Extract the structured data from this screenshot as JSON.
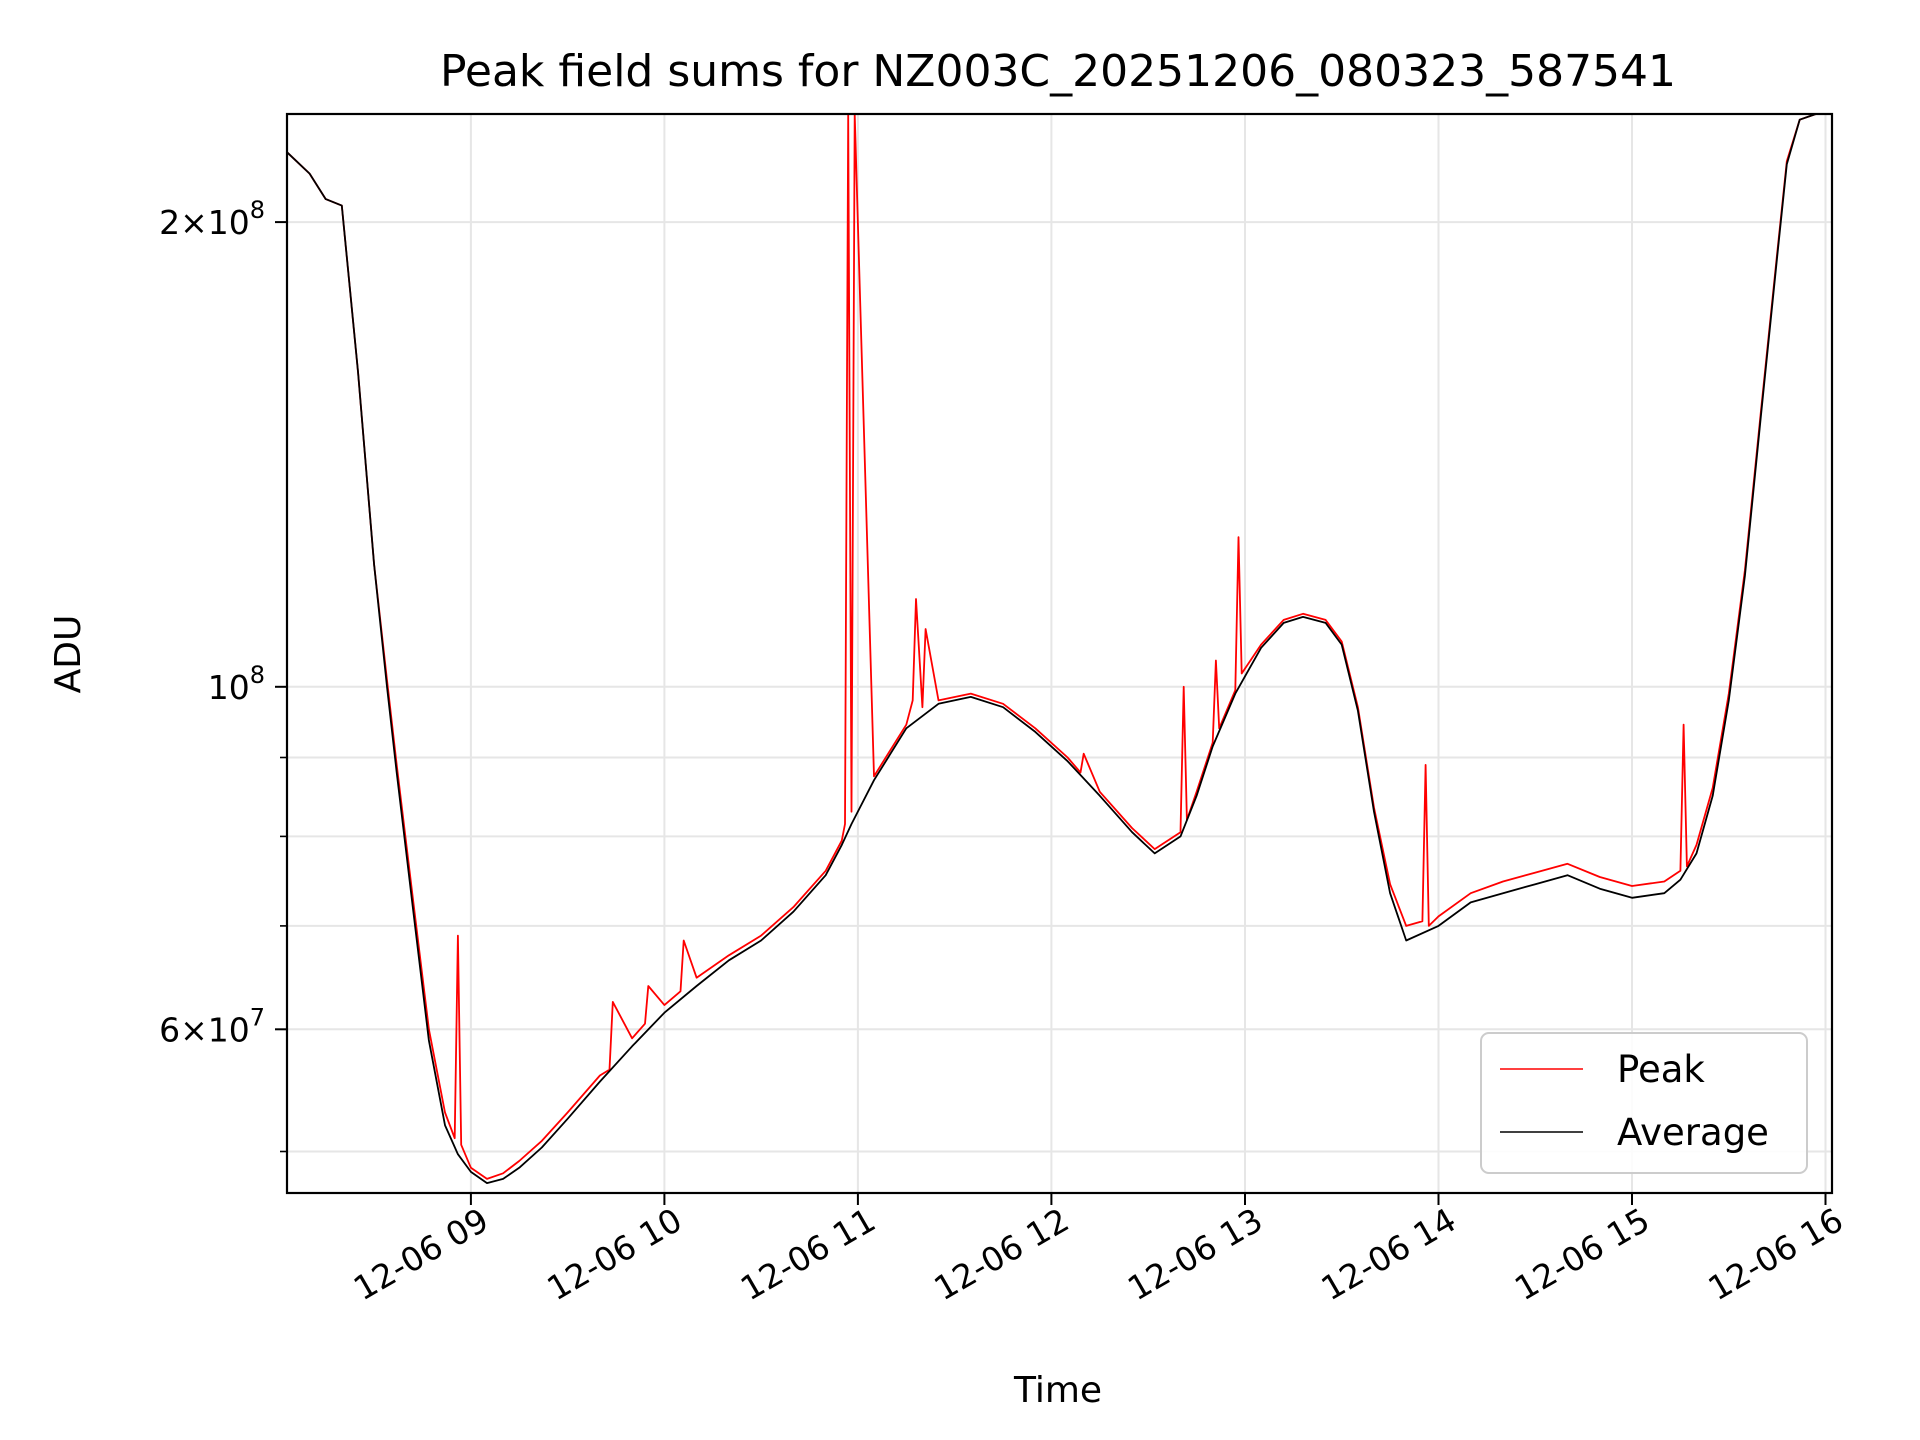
{
  "chart_data": {
    "type": "line",
    "title": "Peak field sums for NZ003C_20251206_080323_587541",
    "xlabel": "Time",
    "ylabel": "ADU",
    "yscale": "log",
    "ylim": [
      47000000,
      235000000
    ],
    "xlim": [
      "2025-12-06 08:03",
      "2025-12-06 16:02"
    ],
    "grid": true,
    "legend_position": "lower-right",
    "x_tick_labels": [
      "12-06 09",
      "12-06 10",
      "12-06 11",
      "12-06 12",
      "12-06 13",
      "12-06 14",
      "12-06 15",
      "12-06 16"
    ],
    "x_tick_times": [
      "2025-12-06 09:00",
      "2025-12-06 10:00",
      "2025-12-06 11:00",
      "2025-12-06 12:00",
      "2025-12-06 13:00",
      "2025-12-06 14:00",
      "2025-12-06 15:00",
      "2025-12-06 16:00"
    ],
    "y_major_ticks": [
      {
        "value": 60000000,
        "base": "6",
        "exp": "7",
        "mantissa": true
      },
      {
        "value": 100000000,
        "base": "10",
        "exp": "8",
        "mantissa": false
      },
      {
        "value": 200000000,
        "base": "2",
        "exp": "8",
        "mantissa": true
      }
    ],
    "y_minor_ticks": [
      50000000,
      70000000,
      80000000,
      90000000
    ],
    "series": [
      {
        "name": "Average",
        "color": "#000000",
        "x": [
          "2025-12-06 08:03",
          "2025-12-06 08:10",
          "2025-12-06 08:15",
          "2025-12-06 08:20",
          "2025-12-06 08:25",
          "2025-12-06 08:30",
          "2025-12-06 08:34",
          "2025-12-06 08:37",
          "2025-12-06 08:42",
          "2025-12-06 08:47",
          "2025-12-06 08:52",
          "2025-12-06 08:56",
          "2025-12-06 09:00",
          "2025-12-06 09:05",
          "2025-12-06 09:10",
          "2025-12-06 09:15",
          "2025-12-06 09:22",
          "2025-12-06 09:30",
          "2025-12-06 09:40",
          "2025-12-06 09:50",
          "2025-12-06 10:00",
          "2025-12-06 10:10",
          "2025-12-06 10:20",
          "2025-12-06 10:30",
          "2025-12-06 10:40",
          "2025-12-06 10:50",
          "2025-12-06 10:55",
          "2025-12-06 10:58",
          "2025-12-06 11:05",
          "2025-12-06 11:15",
          "2025-12-06 11:25",
          "2025-12-06 11:35",
          "2025-12-06 11:45",
          "2025-12-06 11:55",
          "2025-12-06 12:05",
          "2025-12-06 12:15",
          "2025-12-06 12:25",
          "2025-12-06 12:32",
          "2025-12-06 12:40",
          "2025-12-06 12:45",
          "2025-12-06 12:50",
          "2025-12-06 12:57",
          "2025-12-06 13:05",
          "2025-12-06 13:12",
          "2025-12-06 13:18",
          "2025-12-06 13:25",
          "2025-12-06 13:30",
          "2025-12-06 13:35",
          "2025-12-06 13:40",
          "2025-12-06 13:45",
          "2025-12-06 13:50",
          "2025-12-06 14:00",
          "2025-12-06 14:10",
          "2025-12-06 14:20",
          "2025-12-06 14:30",
          "2025-12-06 14:40",
          "2025-12-06 14:50",
          "2025-12-06 15:00",
          "2025-12-06 15:10",
          "2025-12-06 15:15",
          "2025-12-06 15:20",
          "2025-12-06 15:25",
          "2025-12-06 15:30",
          "2025-12-06 15:35",
          "2025-12-06 15:40",
          "2025-12-06 15:45",
          "2025-12-06 15:48",
          "2025-12-06 15:52",
          "2025-12-06 15:57",
          "2025-12-06 16:02"
        ],
        "y": [
          222000000,
          215000000,
          207000000,
          205000000,
          160000000,
          120000000,
          100000000,
          88000000,
          72000000,
          59000000,
          52000000,
          49800000,
          48500000,
          47700000,
          48000000,
          48800000,
          50300000,
          52500000,
          55500000,
          58500000,
          61500000,
          64000000,
          66500000,
          68500000,
          71500000,
          75500000,
          79000000,
          81500000,
          87000000,
          94000000,
          97500000,
          98500000,
          97000000,
          93500000,
          89500000,
          85000000,
          80500000,
          78000000,
          80000000,
          85000000,
          91500000,
          99000000,
          106000000,
          110000000,
          111000000,
          110000000,
          106500000,
          96500000,
          83000000,
          73500000,
          68500000,
          70000000,
          72500000,
          73500000,
          74500000,
          75500000,
          74000000,
          73000000,
          73500000,
          75000000,
          78000000,
          85000000,
          98000000,
          118000000,
          150000000,
          190000000,
          218000000,
          233000000,
          235000000,
          235000000
        ]
      },
      {
        "name": "Peak",
        "color": "#ff0000",
        "x": [
          "2025-12-06 08:03",
          "2025-12-06 08:10",
          "2025-12-06 08:15",
          "2025-12-06 08:20",
          "2025-12-06 08:25",
          "2025-12-06 08:30",
          "2025-12-06 08:34",
          "2025-12-06 08:37",
          "2025-12-06 08:42",
          "2025-12-06 08:47",
          "2025-12-06 08:52",
          "2025-12-06 08:55",
          "2025-12-06 08:56",
          "2025-12-06 08:57",
          "2025-12-06 09:00",
          "2025-12-06 09:05",
          "2025-12-06 09:10",
          "2025-12-06 09:15",
          "2025-12-06 09:22",
          "2025-12-06 09:30",
          "2025-12-06 09:40",
          "2025-12-06 09:43",
          "2025-12-06 09:44",
          "2025-12-06 09:50",
          "2025-12-06 09:54",
          "2025-12-06 09:55",
          "2025-12-06 10:00",
          "2025-12-06 10:05",
          "2025-12-06 10:06",
          "2025-12-06 10:10",
          "2025-12-06 10:20",
          "2025-12-06 10:30",
          "2025-12-06 10:40",
          "2025-12-06 10:50",
          "2025-12-06 10:55",
          "2025-12-06 10:56",
          "2025-12-06 10:57",
          "2025-12-06 10:58",
          "2025-12-06 10:59",
          "2025-12-06 11:05",
          "2025-12-06 11:15",
          "2025-12-06 11:17",
          "2025-12-06 11:18",
          "2025-12-06 11:20",
          "2025-12-06 11:21",
          "2025-12-06 11:25",
          "2025-12-06 11:35",
          "2025-12-06 11:45",
          "2025-12-06 11:55",
          "2025-12-06 12:05",
          "2025-12-06 12:09",
          "2025-12-06 12:10",
          "2025-12-06 12:15",
          "2025-12-06 12:25",
          "2025-12-06 12:32",
          "2025-12-06 12:40",
          "2025-12-06 12:41",
          "2025-12-06 12:42",
          "2025-12-06 12:45",
          "2025-12-06 12:50",
          "2025-12-06 12:51",
          "2025-12-06 12:52",
          "2025-12-06 12:57",
          "2025-12-06 12:58",
          "2025-12-06 12:59",
          "2025-12-06 13:05",
          "2025-12-06 13:12",
          "2025-12-06 13:18",
          "2025-12-06 13:25",
          "2025-12-06 13:30",
          "2025-12-06 13:35",
          "2025-12-06 13:40",
          "2025-12-06 13:45",
          "2025-12-06 13:50",
          "2025-12-06 13:55",
          "2025-12-06 13:56",
          "2025-12-06 13:57",
          "2025-12-06 14:00",
          "2025-12-06 14:10",
          "2025-12-06 14:20",
          "2025-12-06 14:30",
          "2025-12-06 14:40",
          "2025-12-06 14:50",
          "2025-12-06 15:00",
          "2025-12-06 15:10",
          "2025-12-06 15:15",
          "2025-12-06 15:16",
          "2025-12-06 15:17",
          "2025-12-06 15:20",
          "2025-12-06 15:25",
          "2025-12-06 15:30",
          "2025-12-06 15:35",
          "2025-12-06 15:40",
          "2025-12-06 15:45",
          "2025-12-06 15:48",
          "2025-12-06 15:52",
          "2025-12-06 15:57",
          "2025-12-06 16:02"
        ],
        "y": [
          222000000,
          215000000,
          207000000,
          205000000,
          160000000,
          120000000,
          101000000,
          89000000,
          73000000,
          60000000,
          53000000,
          51000000,
          69000000,
          50500000,
          48800000,
          48000000,
          48400000,
          49300000,
          50800000,
          53000000,
          56000000,
          56500000,
          62500000,
          59200000,
          60500000,
          64000000,
          62200000,
          63500000,
          68500000,
          64800000,
          67000000,
          69000000,
          72000000,
          76000000,
          79500000,
          81500000,
          235000000,
          83000000,
          235000000,
          87500000,
          94500000,
          98000000,
          114000000,
          97000000,
          109000000,
          98000000,
          99000000,
          97500000,
          94000000,
          90000000,
          88000000,
          90500000,
          85500000,
          81000000,
          78500000,
          80500000,
          100000000,
          82000000,
          85500000,
          92000000,
          104000000,
          94000000,
          99500000,
          125000000,
          102000000,
          106500000,
          110500000,
          111500000,
          110500000,
          107000000,
          97000000,
          83500000,
          74500000,
          70000000,
          70500000,
          89000000,
          70000000,
          71000000,
          73500000,
          74800000,
          75800000,
          76800000,
          75300000,
          74300000,
          74800000,
          76000000,
          94500000,
          76500000,
          79000000,
          86000000,
          99000000,
          119000000,
          151000000,
          191000000,
          219000000,
          233000000,
          235000000,
          235000000
        ]
      }
    ]
  }
}
